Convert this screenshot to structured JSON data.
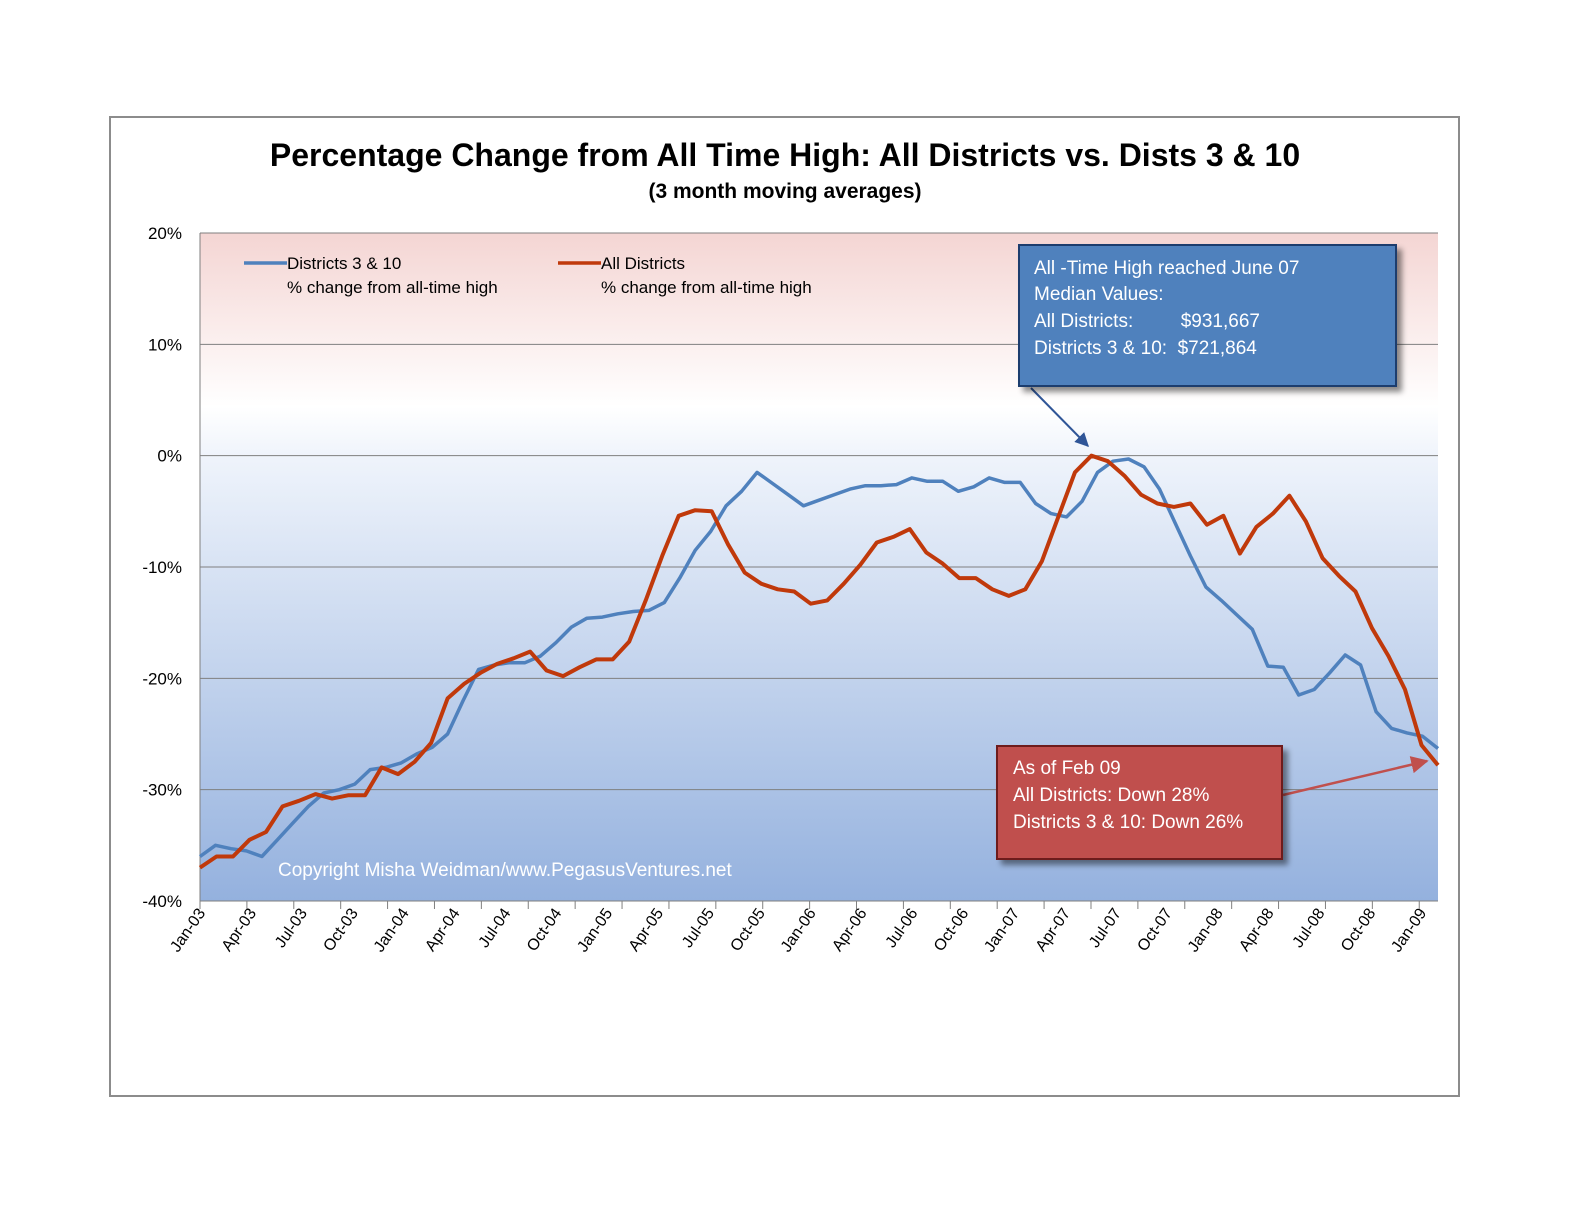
{
  "chart_data": {
    "type": "line",
    "title": "Percentage Change from All Time High:  All Districts vs.  Dists 3 & 10",
    "subtitle": "(3 month moving averages)",
    "y_ticks": [
      "20%",
      "10%",
      "0%",
      "-10%",
      "-20%",
      "-30%",
      "-40%"
    ],
    "ylim": [
      -40,
      20
    ],
    "grid": true,
    "x_tick_labels": [
      "Jan-03",
      "Apr-03",
      "Jul-03",
      "Oct-03",
      "Jan-04",
      "Apr-04",
      "Jul-04",
      "Oct-04",
      "Jan-05",
      "Apr-05",
      "Jul-05",
      "Oct-05",
      "Jan-06",
      "Apr-06",
      "Jul-06",
      "Oct-06",
      "Jan-07",
      "Apr-07",
      "Jul-07",
      "Oct-07",
      "Jan-08",
      "Apr-08",
      "Jul-08",
      "Oct-08",
      "Jan-09"
    ],
    "legend": {
      "placement": "top-left",
      "entries": [
        {
          "line1": "Districts 3 & 10",
          "line2": "% change from all-time high",
          "color": "#4f81bd"
        },
        {
          "line1": "All Districts",
          "line2": "% change from all-time high",
          "color": "#c0390b"
        }
      ]
    },
    "series": [
      {
        "name": "Districts 3 & 10",
        "color": "#4f81bd",
        "values": [
          -36,
          -35,
          -35.3,
          -35.5,
          -36,
          -34.5,
          -33,
          -31.5,
          -30.3,
          -30,
          -29.5,
          -28.2,
          -28,
          -27.6,
          -26.8,
          -26.2,
          -25,
          -22,
          -19.2,
          -18.8,
          -18.6,
          -18.6,
          -18,
          -16.8,
          -15.4,
          -14.6,
          -14.5,
          -14.2,
          -14,
          -13.9,
          -13.2,
          -11,
          -8.5,
          -6.8,
          -4.5,
          -3.2,
          -1.5,
          -2.5,
          -3.5,
          -4.5,
          -4,
          -3.5,
          -3,
          -2.7,
          -2.7,
          -2.6,
          -2,
          -2.3,
          -2.3,
          -3.2,
          -2.8,
          -2,
          -2.4,
          -2.4,
          -4.3,
          -5.2,
          -5.5,
          -4.1,
          -1.5,
          -0.5,
          -0.3,
          -1,
          -3,
          -6,
          -9,
          -11.8,
          -13,
          -14.3,
          -15.6,
          -18.9,
          -19,
          -21.5,
          -21,
          -19.5,
          -17.9,
          -18.8,
          -23,
          -24.5,
          -24.9,
          -25.2,
          -26.3
        ]
      },
      {
        "name": "All Districts",
        "color": "#c0390b",
        "values": [
          -37,
          -36,
          -36,
          -34.5,
          -33.8,
          -31.5,
          -31,
          -30.4,
          -30.8,
          -30.5,
          -30.5,
          -28,
          -28.6,
          -27.5,
          -25.8,
          -21.8,
          -20.5,
          -19.5,
          -18.7,
          -18.2,
          -17.6,
          -19.3,
          -19.8,
          -19,
          -18.3,
          -18.3,
          -16.7,
          -13,
          -9,
          -5.4,
          -4.9,
          -5,
          -8,
          -10.5,
          -11.5,
          -12,
          -12.2,
          -13.3,
          -13,
          -11.5,
          -9.8,
          -7.8,
          -7.3,
          -6.6,
          -8.7,
          -9.7,
          -11,
          -11,
          -12,
          -12.6,
          -12,
          -9.5,
          -5.5,
          -1.5,
          0,
          -0.5,
          -1.8,
          -3.5,
          -4.3,
          -4.6,
          -4.3,
          -6.2,
          -5.4,
          -8.8,
          -6.4,
          -5.2,
          -3.6,
          -5.9,
          -9.2,
          -10.8,
          -12.2,
          -15.5,
          -18,
          -21,
          -26,
          -27.8
        ]
      }
    ],
    "annotations": [
      {
        "lines": [
          "All -Time High reached  June 07",
          "Median Values:",
          "All Districts:         $931,667",
          "Districts 3 & 10:  $721,864"
        ],
        "fill": "#4f81bd"
      },
      {
        "lines": [
          "As of Feb 09",
          "All Districts: Down 28%",
          "Districts 3 & 10: Down 26%"
        ],
        "fill": "#c0504d"
      }
    ],
    "copyright": "Copyright Misha Weidman/www.PegasusVentures.net"
  }
}
